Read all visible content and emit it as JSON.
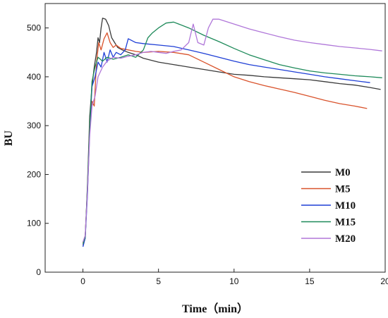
{
  "chart_data": {
    "type": "line",
    "xlabel": "Time（min）",
    "ylabel": "BU",
    "xlim": [
      -2.5,
      20
    ],
    "ylim": [
      0,
      550
    ],
    "xticks": [
      0,
      5,
      10,
      15,
      20
    ],
    "yticks": [
      0,
      100,
      200,
      300,
      400,
      500
    ],
    "grid": false,
    "legend_position": "bottom-right",
    "series": [
      {
        "name": "M0",
        "color": "#3a3a3a",
        "points": [
          [
            0,
            55
          ],
          [
            0.15,
            70
          ],
          [
            0.3,
            180
          ],
          [
            0.45,
            320
          ],
          [
            0.6,
            380
          ],
          [
            0.75,
            420
          ],
          [
            0.9,
            450
          ],
          [
            1.0,
            480
          ],
          [
            1.1,
            470
          ],
          [
            1.2,
            500
          ],
          [
            1.3,
            520
          ],
          [
            1.5,
            518
          ],
          [
            1.7,
            505
          ],
          [
            1.9,
            480
          ],
          [
            2.1,
            470
          ],
          [
            2.3,
            460
          ],
          [
            2.6,
            455
          ],
          [
            3.0,
            450
          ],
          [
            3.5,
            445
          ],
          [
            4.0,
            438
          ],
          [
            5.0,
            430
          ],
          [
            6.0,
            425
          ],
          [
            7.0,
            420
          ],
          [
            8.0,
            415
          ],
          [
            9.0,
            410
          ],
          [
            10.0,
            405
          ],
          [
            11.0,
            403
          ],
          [
            12.0,
            400
          ],
          [
            13.0,
            398
          ],
          [
            14.0,
            396
          ],
          [
            15.0,
            394
          ],
          [
            16.0,
            390
          ],
          [
            17.0,
            386
          ],
          [
            18.0,
            383
          ],
          [
            19.0,
            378
          ],
          [
            19.7,
            374
          ]
        ]
      },
      {
        "name": "M5",
        "color": "#d9532c",
        "points": [
          [
            0,
            60
          ],
          [
            0.15,
            75
          ],
          [
            0.3,
            170
          ],
          [
            0.45,
            300
          ],
          [
            0.6,
            350
          ],
          [
            0.75,
            340
          ],
          [
            0.9,
            430
          ],
          [
            1.05,
            470
          ],
          [
            1.2,
            455
          ],
          [
            1.4,
            478
          ],
          [
            1.6,
            490
          ],
          [
            1.8,
            470
          ],
          [
            2.0,
            460
          ],
          [
            2.2,
            465
          ],
          [
            2.5,
            458
          ],
          [
            3.0,
            455
          ],
          [
            3.5,
            452
          ],
          [
            4.0,
            450
          ],
          [
            5.0,
            452
          ],
          [
            6.0,
            450
          ],
          [
            7.0,
            445
          ],
          [
            8.0,
            430
          ],
          [
            9.0,
            415
          ],
          [
            10.0,
            400
          ],
          [
            11.0,
            390
          ],
          [
            12.0,
            382
          ],
          [
            13.0,
            375
          ],
          [
            14.0,
            368
          ],
          [
            15.0,
            360
          ],
          [
            16.0,
            352
          ],
          [
            17.0,
            345
          ],
          [
            18.0,
            340
          ],
          [
            18.8,
            335
          ]
        ]
      },
      {
        "name": "M10",
        "color": "#1f3fd6",
        "points": [
          [
            0,
            52
          ],
          [
            0.15,
            70
          ],
          [
            0.3,
            160
          ],
          [
            0.45,
            290
          ],
          [
            0.6,
            380
          ],
          [
            0.8,
            400
          ],
          [
            1.0,
            430
          ],
          [
            1.2,
            420
          ],
          [
            1.4,
            450
          ],
          [
            1.6,
            430
          ],
          [
            1.8,
            455
          ],
          [
            2.0,
            440
          ],
          [
            2.2,
            450
          ],
          [
            2.5,
            445
          ],
          [
            2.8,
            455
          ],
          [
            3.0,
            478
          ],
          [
            3.5,
            470
          ],
          [
            4.0,
            468
          ],
          [
            5.0,
            465
          ],
          [
            6.0,
            462
          ],
          [
            7.0,
            455
          ],
          [
            8.0,
            448
          ],
          [
            9.0,
            440
          ],
          [
            10.0,
            432
          ],
          [
            11.0,
            425
          ],
          [
            12.0,
            420
          ],
          [
            13.0,
            415
          ],
          [
            14.0,
            410
          ],
          [
            15.0,
            405
          ],
          [
            16.0,
            400
          ],
          [
            17.0,
            396
          ],
          [
            18.0,
            392
          ],
          [
            19.0,
            388
          ]
        ]
      },
      {
        "name": "M15",
        "color": "#1e8a5a",
        "points": [
          [
            0,
            58
          ],
          [
            0.15,
            72
          ],
          [
            0.3,
            175
          ],
          [
            0.45,
            300
          ],
          [
            0.6,
            390
          ],
          [
            0.8,
            420
          ],
          [
            1.0,
            440
          ],
          [
            1.3,
            432
          ],
          [
            1.6,
            440
          ],
          [
            2.0,
            436
          ],
          [
            2.5,
            440
          ],
          [
            3.0,
            445
          ],
          [
            3.5,
            440
          ],
          [
            4.0,
            455
          ],
          [
            4.3,
            480
          ],
          [
            4.6,
            490
          ],
          [
            5.0,
            500
          ],
          [
            5.5,
            510
          ],
          [
            6.0,
            512
          ],
          [
            7.0,
            500
          ],
          [
            8.0,
            485
          ],
          [
            9.0,
            472
          ],
          [
            10.0,
            458
          ],
          [
            11.0,
            445
          ],
          [
            12.0,
            435
          ],
          [
            13.0,
            425
          ],
          [
            14.0,
            418
          ],
          [
            15.0,
            412
          ],
          [
            16.0,
            408
          ],
          [
            17.0,
            405
          ],
          [
            18.0,
            402
          ],
          [
            19.0,
            400
          ],
          [
            19.8,
            398
          ]
        ]
      },
      {
        "name": "M20",
        "color": "#b077d9",
        "points": [
          [
            0,
            62
          ],
          [
            0.15,
            75
          ],
          [
            0.3,
            165
          ],
          [
            0.45,
            280
          ],
          [
            0.6,
            340
          ],
          [
            0.8,
            360
          ],
          [
            1.0,
            400
          ],
          [
            1.3,
            420
          ],
          [
            1.6,
            432
          ],
          [
            2.0,
            440
          ],
          [
            2.5,
            438
          ],
          [
            3.0,
            442
          ],
          [
            3.5,
            445
          ],
          [
            4.0,
            450
          ],
          [
            4.5,
            452
          ],
          [
            5.0,
            450
          ],
          [
            5.5,
            448
          ],
          [
            6.0,
            452
          ],
          [
            6.5,
            455
          ],
          [
            7.0,
            470
          ],
          [
            7.3,
            508
          ],
          [
            7.6,
            470
          ],
          [
            8.0,
            465
          ],
          [
            8.3,
            500
          ],
          [
            8.6,
            518
          ],
          [
            9.0,
            518
          ],
          [
            10.0,
            508
          ],
          [
            11.0,
            498
          ],
          [
            12.0,
            490
          ],
          [
            13.0,
            482
          ],
          [
            14.0,
            475
          ],
          [
            15.0,
            470
          ],
          [
            16.0,
            466
          ],
          [
            17.0,
            462
          ],
          [
            18.0,
            459
          ],
          [
            19.0,
            456
          ],
          [
            19.8,
            453
          ]
        ]
      }
    ]
  }
}
